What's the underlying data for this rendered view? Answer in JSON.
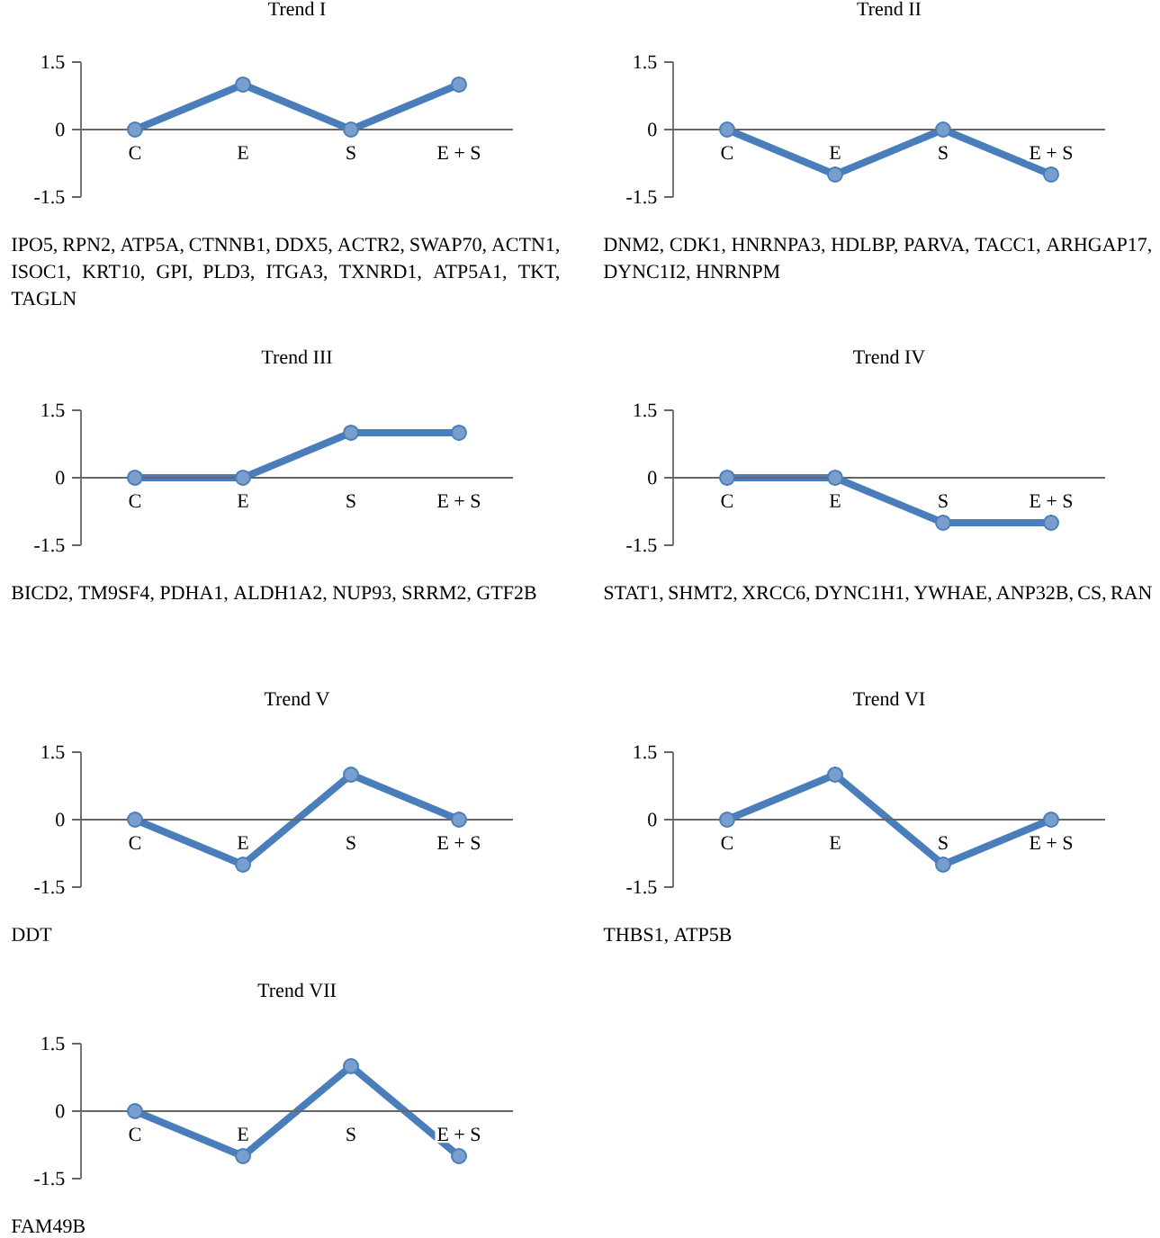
{
  "chart_data": [
    {
      "type": "line",
      "title": "Trend I",
      "categories": [
        "C",
        "E",
        "S",
        "E + S"
      ],
      "values": [
        0,
        1,
        0,
        1
      ],
      "color": "#4a7ebb",
      "marker": "circle",
      "ylim": [
        -1.5,
        1.5
      ],
      "yticks": [
        1.5,
        0,
        -1.5
      ],
      "annotations": [
        "IPO5, RPN2, ATP5A, CTNNB1, DDX5, ACTR2, SWAP70, ACTN1, ISOC1, KRT10, GPI, PLD3, ITGA3, TXNRD1, ATP5A1, TKT, TAGLN"
      ]
    },
    {
      "type": "line",
      "title": "Trend II",
      "categories": [
        "C",
        "E",
        "S",
        "E + S"
      ],
      "values": [
        0,
        -1,
        0,
        -1
      ],
      "color": "#4a7ebb",
      "marker": "circle",
      "ylim": [
        -1.5,
        1.5
      ],
      "yticks": [
        1.5,
        0,
        -1.5
      ],
      "annotations": [
        "DNM2, CDK1, HNRNPA3, HDLBP, PARVA, TACC1, ARHGAP17, DYNC1I2, HNRNPM"
      ]
    },
    {
      "type": "line",
      "title": "Trend III",
      "categories": [
        "C",
        "E",
        "S",
        "E + S"
      ],
      "values": [
        0,
        0,
        1,
        1
      ],
      "color": "#4a7ebb",
      "marker": "circle",
      "ylim": [
        -1.5,
        1.5
      ],
      "yticks": [
        1.5,
        0,
        -1.5
      ],
      "annotations": [
        "BICD2, TM9SF4, PDHA1, ALDH1A2, NUP93, SRRM2, GTF2B"
      ]
    },
    {
      "type": "line",
      "title": "Trend IV",
      "categories": [
        "C",
        "E",
        "S",
        "E + S"
      ],
      "values": [
        0,
        0,
        -1,
        -1
      ],
      "color": "#4a7ebb",
      "marker": "circle",
      "ylim": [
        -1.5,
        1.5
      ],
      "yticks": [
        1.5,
        0,
        -1.5
      ],
      "annotations": [
        "STAT1, SHMT2, XRCC6, DYNC1H1, YWHAE, ANP32B, CS, RAN"
      ]
    },
    {
      "type": "line",
      "title": "Trend V",
      "categories": [
        "C",
        "E",
        "S",
        "E + S"
      ],
      "values": [
        0,
        -1,
        1,
        0
      ],
      "color": "#4a7ebb",
      "marker": "circle",
      "ylim": [
        -1.5,
        1.5
      ],
      "yticks": [
        1.5,
        0,
        -1.5
      ],
      "annotations": [
        "DDT"
      ]
    },
    {
      "type": "line",
      "title": "Trend VI",
      "categories": [
        "C",
        "E",
        "S",
        "E + S"
      ],
      "values": [
        0,
        1,
        -1,
        0
      ],
      "color": "#4a7ebb",
      "marker": "circle",
      "ylim": [
        -1.5,
        1.5
      ],
      "yticks": [
        1.5,
        0,
        -1.5
      ],
      "annotations": [
        "THBS1, ATP5B"
      ]
    },
    {
      "type": "line",
      "title": "Trend VII",
      "categories": [
        "C",
        "E",
        "S",
        "E + S"
      ],
      "values": [
        0,
        -1,
        1,
        -1
      ],
      "color": "#4a7ebb",
      "marker": "circle",
      "ylim": [
        -1.5,
        1.5
      ],
      "yticks": [
        1.5,
        0,
        -1.5
      ],
      "annotations": [
        "FAM49B"
      ]
    }
  ]
}
